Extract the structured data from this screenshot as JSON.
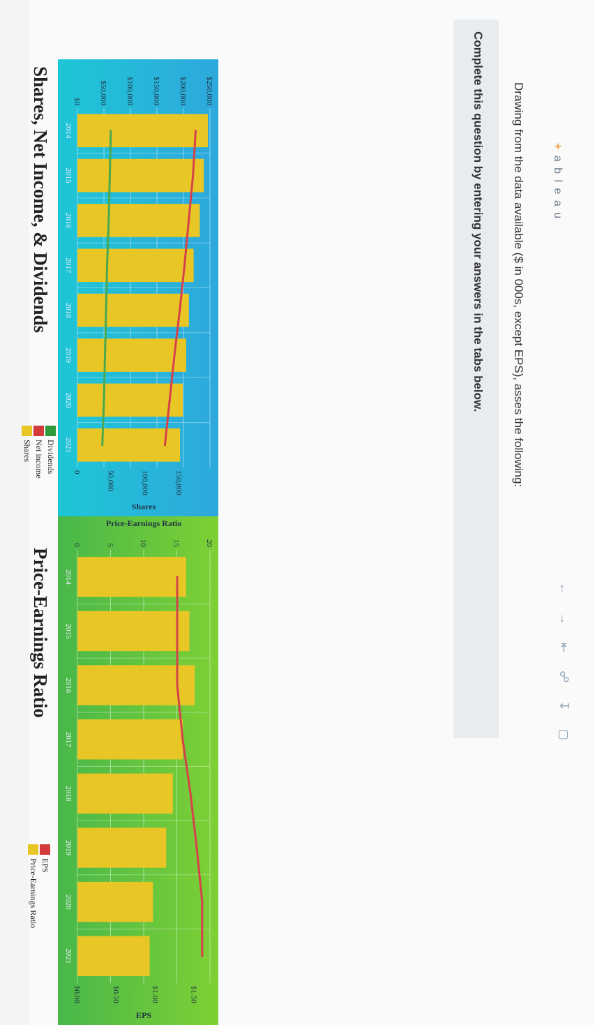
{
  "left_chart": {
    "title": "Shares, Net Income, & Dividends",
    "legend": [
      {
        "label": "Dividends",
        "color": "#2e9a3c"
      },
      {
        "label": "Net income",
        "color": "#d33a3a"
      },
      {
        "label": "Shares",
        "color": "#e8c626"
      }
    ],
    "left_axis_ticks": [
      "$250,000",
      "$200,000",
      "$150,000",
      "$100,000",
      "$50,000",
      "$0"
    ],
    "right_axis_ticks": [
      "150,000",
      "100,000",
      "50,000",
      "0"
    ],
    "right_axis_title": "Shares",
    "x_ticks": [
      "2014",
      "2015",
      "2016",
      "2017",
      "2018",
      "2019",
      "2020",
      "2021"
    ],
    "colors": {
      "bg_top": "#2ea8dc",
      "bg_bottom": "#1ec6d6"
    }
  },
  "right_chart": {
    "title": "Price-Earnings Ratio",
    "legend": [
      {
        "label": "EPS",
        "color": "#d33a3a"
      },
      {
        "label": "Price-Earnings Ratio",
        "color": "#e8c626"
      }
    ],
    "left_axis_ticks": [
      "20",
      "15",
      "10",
      "5",
      "0"
    ],
    "left_axis_title": "Price-Earnings Ratio",
    "right_axis_ticks": [
      "$1.50",
      "$1.00",
      "$0.50",
      "$0.00"
    ],
    "right_axis_title": "EPS",
    "x_ticks": [
      "2014",
      "2015",
      "2016",
      "2017",
      "2018",
      "2019",
      "2020",
      "2021"
    ],
    "colors": {
      "bg_top": "#7ed034",
      "bg_bottom": "#48b84a"
    }
  },
  "chart_data": [
    {
      "type": "bar",
      "title": "Shares, Net Income, & Dividends",
      "categories": [
        "2014",
        "2015",
        "2016",
        "2017",
        "2018",
        "2019",
        "2020",
        "2021"
      ],
      "ylabel_right": "Shares",
      "ylim_left": [
        0,
        250000
      ],
      "ylim_right": [
        0,
        195000
      ],
      "series": [
        {
          "name": "Shares",
          "type": "bar",
          "axis": "right",
          "values": [
            192000,
            186000,
            180000,
            171000,
            164000,
            160000,
            155000,
            151000
          ]
        },
        {
          "name": "Net income",
          "type": "line",
          "axis": "left",
          "values": [
            223000,
            218000,
            210000,
            202000,
            193000,
            183000,
            174000,
            165000
          ]
        },
        {
          "name": "Dividends",
          "type": "line",
          "axis": "left",
          "values": [
            63000,
            61000,
            59000,
            56000,
            54000,
            52000,
            50000,
            47000
          ]
        }
      ],
      "grid": true,
      "legend": "top-right"
    },
    {
      "type": "bar",
      "title": "Price-Earnings Ratio",
      "categories": [
        "2014",
        "2015",
        "2016",
        "2017",
        "2018",
        "2019",
        "2020",
        "2021"
      ],
      "ylabel": "Price-Earnings Ratio",
      "ylabel_right": "EPS",
      "ylim_left": [
        0,
        20
      ],
      "ylim_right": [
        0,
        1.7
      ],
      "series": [
        {
          "name": "Price-Earnings Ratio",
          "type": "bar",
          "axis": "left",
          "values": [
            16.4,
            16.9,
            17.7,
            15.9,
            14.4,
            13.4,
            11.4,
            10.9
          ]
        },
        {
          "name": "EPS",
          "type": "line",
          "axis": "right",
          "values": [
            1.28,
            1.28,
            1.28,
            1.35,
            1.45,
            1.53,
            1.6,
            1.6
          ]
        }
      ],
      "grid": true,
      "legend": "top-right"
    }
  ],
  "footer": {
    "logo_plus": "+",
    "logo_text": "a b l e a u",
    "nav_icons": [
      "undo-icon",
      "redo-icon",
      "revert-icon",
      "share-icon",
      "download-icon",
      "fullscreen-icon"
    ]
  },
  "question": {
    "intro": "Drawing from the data available ($ in 000s, except EPS), asses the following:",
    "instruction": "Complete this question by entering your answers in the tabs below."
  }
}
